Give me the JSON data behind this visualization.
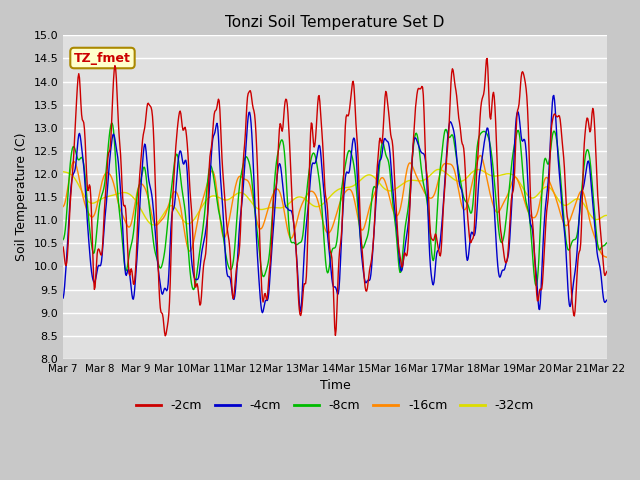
{
  "title": "Tonzi Soil Temperature Set D",
  "xlabel": "Time",
  "ylabel": "Soil Temperature (C)",
  "ylim": [
    8.0,
    15.0
  ],
  "yticks": [
    8.0,
    8.5,
    9.0,
    9.5,
    10.0,
    10.5,
    11.0,
    11.5,
    12.0,
    12.5,
    13.0,
    13.5,
    14.0,
    14.5,
    15.0
  ],
  "xtick_labels": [
    "Mar 7",
    "Mar 8",
    "Mar 9",
    "Mar 10",
    "Mar 11",
    "Mar 12",
    "Mar 13",
    "Mar 14",
    "Mar 15",
    "Mar 16",
    "Mar 17",
    "Mar 18",
    "Mar 19",
    "Mar 20",
    "Mar 21",
    "Mar 22"
  ],
  "legend_labels": [
    "-2cm",
    "-4cm",
    "-8cm",
    "-16cm",
    "-32cm"
  ],
  "line_colors": [
    "#cc0000",
    "#0000cc",
    "#00bb00",
    "#ff8800",
    "#dddd00"
  ],
  "annotation_text": "TZ_fmet",
  "annotation_color": "#cc0000",
  "annotation_bg": "#ffffcc",
  "annotation_border": "#aa8800",
  "fig_facecolor": "#c8c8c8",
  "plot_facecolor": "#e0e0e0",
  "grid_color": "#ffffff"
}
